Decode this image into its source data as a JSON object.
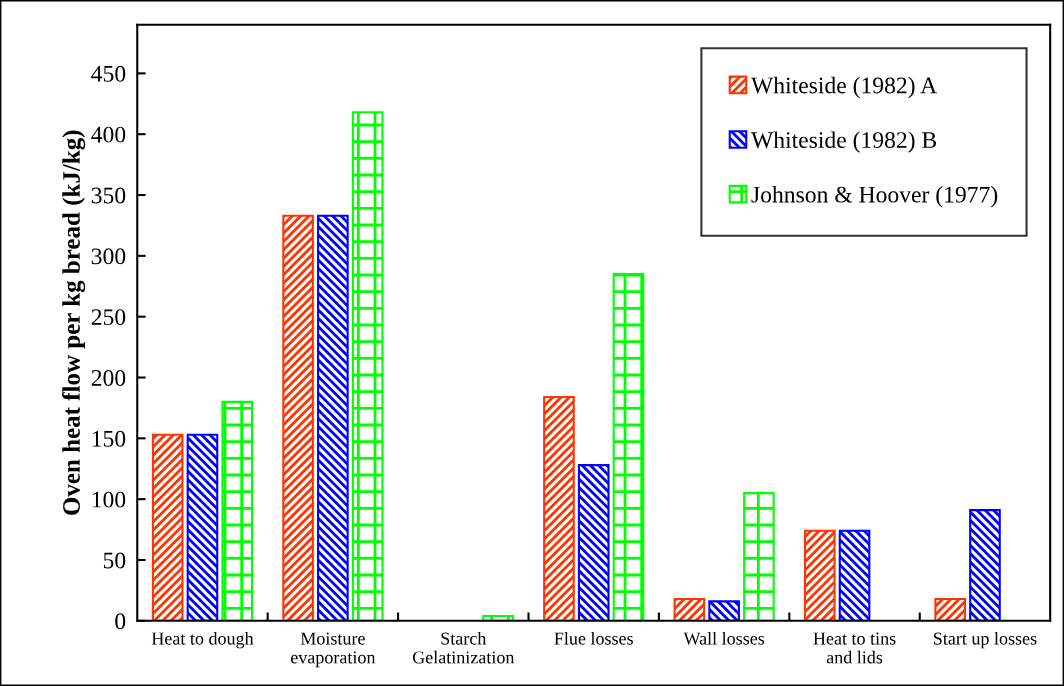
{
  "chart_data": {
    "type": "bar",
    "ylabel": "Oven heat flow per kg bread (kJ/kg)",
    "categories": [
      "Heat to dough",
      "Moisture\nevaporation",
      "Starch\nGelatinization",
      "Flue losses",
      "Wall losses",
      "Heat to tins\nand lids",
      "Start up losses"
    ],
    "series": [
      {
        "name": "Whiteside (1982) A",
        "color": "#ff3300",
        "values": [
          153,
          333,
          null,
          184,
          18,
          74,
          18
        ]
      },
      {
        "name": "Whiteside (1982) B",
        "color": "#0000ff",
        "values": [
          153,
          333,
          null,
          128,
          16,
          74,
          91
        ]
      },
      {
        "name": "Johnson & Hoover (1977)",
        "color": "#00ff00",
        "values": [
          180,
          418,
          4,
          285,
          105,
          null,
          null
        ]
      }
    ],
    "ylim": [
      0,
      490
    ],
    "yticks": [
      0,
      50,
      100,
      150,
      200,
      250,
      300,
      350,
      400,
      450
    ],
    "grid": false,
    "legend": "top right"
  }
}
